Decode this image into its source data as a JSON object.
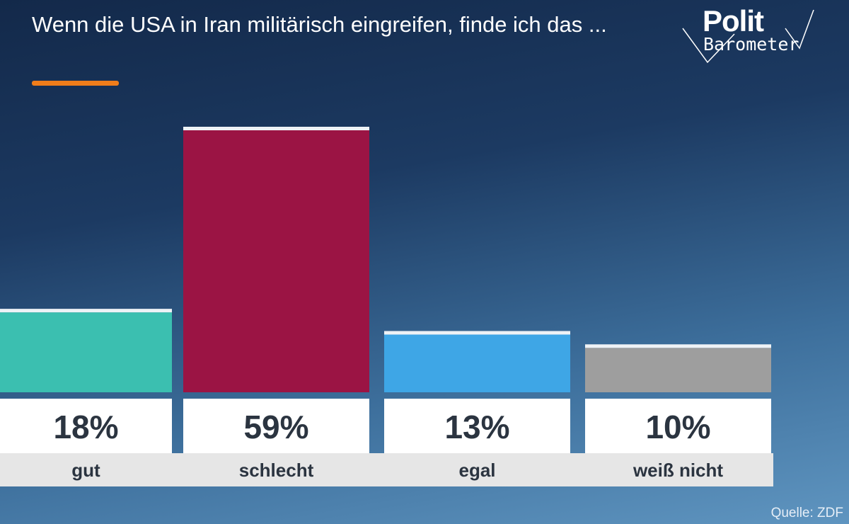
{
  "header": {
    "title": "Wenn die USA in Iran militärisch eingreifen, finde ich das ...",
    "accent_color": "#f07d1a"
  },
  "logo": {
    "word1": "Polit",
    "word2": "Barometer"
  },
  "chart_data": {
    "type": "bar",
    "title": "Wenn die USA in Iran militärisch eingreifen, finde ich das ...",
    "categories": [
      "gut",
      "schlecht",
      "egal",
      "weiß nicht"
    ],
    "values": [
      18,
      59,
      13,
      10
    ],
    "value_labels": [
      "18%",
      "59%",
      "13%",
      "10%"
    ],
    "colors": [
      "#3bbfb0",
      "#9b1444",
      "#3ea6e6",
      "#9e9e9e"
    ],
    "ylim": [
      0,
      59
    ],
    "grid": false,
    "legend": "none"
  },
  "footer": {
    "source": "Quelle: ZDF"
  }
}
